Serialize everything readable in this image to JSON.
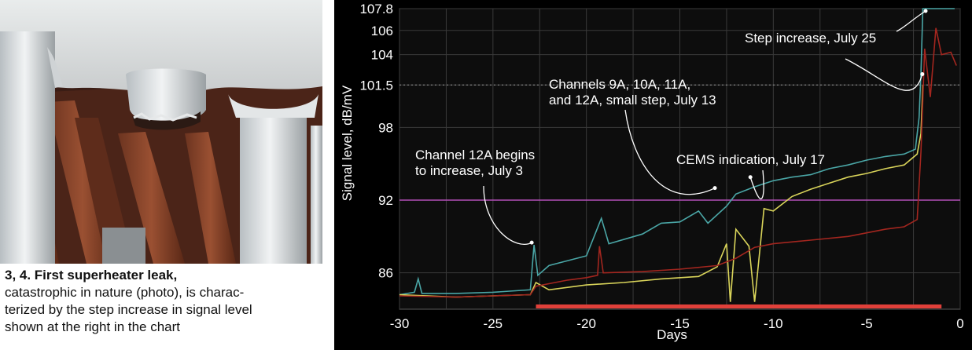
{
  "caption": {
    "heading": "3, 4. First superheater leak,",
    "line1": "catastrophic in nature (photo), is charac-",
    "line2": "terized by the step increase in signal level",
    "line3": "shown at the right in the chart"
  },
  "photo": {
    "description_icon": "superheater-pipes-photo"
  },
  "colors": {
    "panel_bg": "#000000",
    "plot_bg": "#0d0d0d",
    "grid": "#3a3a3a",
    "threshold": "#b14fb7",
    "dotted": "#9a9a9a",
    "teal": "#4aa6a6",
    "yellow": "#d9d45a",
    "red": "#a3261f",
    "bar": "#e0403a",
    "text": "#ffffff"
  },
  "chart_data": {
    "type": "line",
    "xlabel": "Days",
    "ylabel": "Signal level, dB/mV",
    "xlim": [
      -30,
      0
    ],
    "ylim": [
      83,
      107.8
    ],
    "x_ticks": [
      -30,
      -25,
      -20,
      -15,
      -10,
      -5,
      0
    ],
    "x_tick_labels": [
      "-30",
      "-25",
      "-20",
      "-15",
      "-10",
      "-5",
      "0"
    ],
    "y_ticks": [
      86,
      92,
      98,
      101.5,
      104,
      106,
      107.8
    ],
    "y_tick_labels": [
      "86",
      "92",
      "98",
      "101.5",
      "104",
      "106",
      "107.8"
    ],
    "threshold_line": 92,
    "dotted_line": 101.5,
    "grid": true,
    "bar_range_x": [
      -22.7,
      -1
    ],
    "series": [
      {
        "color": "#4aa6a6",
        "points": [
          [
            -30,
            84.2
          ],
          [
            -29.2,
            84.4
          ],
          [
            -29,
            85.5
          ],
          [
            -28.8,
            84.3
          ],
          [
            -27,
            84.3
          ],
          [
            -25,
            84.4
          ],
          [
            -23,
            84.6
          ],
          [
            -22.8,
            88.3
          ],
          [
            -22.6,
            85.8
          ],
          [
            -22,
            86.6
          ],
          [
            -20,
            87.4
          ],
          [
            -19.2,
            90.5
          ],
          [
            -18.8,
            88.4
          ],
          [
            -17,
            89.2
          ],
          [
            -16,
            90.1
          ],
          [
            -15,
            90.2
          ],
          [
            -14,
            91.1
          ],
          [
            -13.5,
            90.1
          ],
          [
            -12.5,
            91.5
          ],
          [
            -12,
            92.5
          ],
          [
            -11,
            93.1
          ],
          [
            -10,
            93.6
          ],
          [
            -9,
            93.9
          ],
          [
            -8,
            94.1
          ],
          [
            -7,
            94.6
          ],
          [
            -6,
            94.9
          ],
          [
            -5,
            95.3
          ],
          [
            -4,
            95.6
          ],
          [
            -3,
            95.8
          ],
          [
            -2.4,
            96.2
          ],
          [
            -2.2,
            98.8
          ],
          [
            -2.1,
            102.5
          ],
          [
            -2,
            107.8
          ],
          [
            -0.3,
            107.8
          ]
        ]
      },
      {
        "color": "#d9d45a",
        "points": [
          [
            -30,
            84.2
          ],
          [
            -27,
            84.0
          ],
          [
            -25,
            84.1
          ],
          [
            -23,
            84.2
          ],
          [
            -22.7,
            85.2
          ],
          [
            -22,
            84.6
          ],
          [
            -20,
            85.0
          ],
          [
            -18,
            85.2
          ],
          [
            -16,
            85.5
          ],
          [
            -14,
            85.7
          ],
          [
            -13,
            86.5
          ],
          [
            -12.5,
            88.4
          ],
          [
            -12.3,
            83.6
          ],
          [
            -12,
            89.6
          ],
          [
            -11.3,
            88.2
          ],
          [
            -11,
            83.6
          ],
          [
            -10.5,
            91.3
          ],
          [
            -10,
            91.1
          ],
          [
            -9,
            92.3
          ],
          [
            -8,
            92.9
          ],
          [
            -7,
            93.4
          ],
          [
            -6,
            93.9
          ],
          [
            -5,
            94.2
          ],
          [
            -4,
            94.6
          ],
          [
            -3,
            94.9
          ],
          [
            -2.3,
            95.8
          ],
          [
            -2.1,
            97.5
          ],
          [
            -2,
            101.5
          ]
        ]
      },
      {
        "color": "#a3261f",
        "points": [
          [
            -30,
            84.1
          ],
          [
            -27,
            84.0
          ],
          [
            -25,
            84.1
          ],
          [
            -23,
            84.2
          ],
          [
            -22.7,
            84.9
          ],
          [
            -21,
            85.4
          ],
          [
            -20,
            85.6
          ],
          [
            -19.4,
            85.8
          ],
          [
            -19.3,
            88.2
          ],
          [
            -19.1,
            86.0
          ],
          [
            -17,
            86.1
          ],
          [
            -15,
            86.3
          ],
          [
            -13,
            86.6
          ],
          [
            -12,
            87.2
          ],
          [
            -11,
            88.1
          ],
          [
            -10,
            88.4
          ],
          [
            -8,
            88.7
          ],
          [
            -6,
            89.0
          ],
          [
            -5,
            89.3
          ],
          [
            -4,
            89.6
          ],
          [
            -3,
            89.8
          ],
          [
            -2.3,
            90.4
          ],
          [
            -2.1,
            96.0
          ],
          [
            -1.9,
            104.5
          ],
          [
            -1.6,
            100.5
          ],
          [
            -1.3,
            106.2
          ],
          [
            -1,
            104.0
          ],
          [
            -0.5,
            104.2
          ],
          [
            -0.2,
            103.1
          ]
        ]
      }
    ],
    "annotations": [
      {
        "text": "Channel 12A begins",
        "text2": "to increase, July 3",
        "target": [
          -22.8,
          88.3
        ]
      },
      {
        "text": "Channels 9A, 10A, 11A,",
        "text2": "and 12A, small step, July 13",
        "target": [
          -13.0,
          92.8
        ]
      },
      {
        "text": "CEMS indication, July 17",
        "text2": "",
        "target": [
          -11.1,
          93.7
        ]
      },
      {
        "text": "Step increase, July 25",
        "text2": "",
        "target": [
          -1.9,
          102.2
        ]
      }
    ]
  }
}
